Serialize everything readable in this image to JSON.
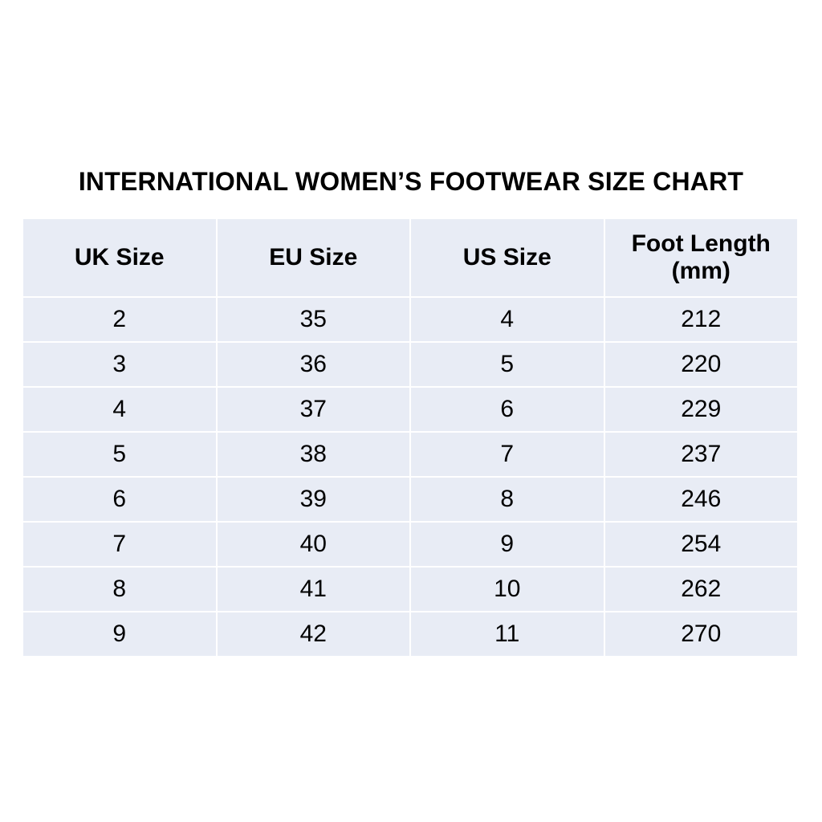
{
  "title": "INTERNATIONAL WOMEN’S FOOTWEAR SIZE CHART",
  "colors": {
    "cell_background": "#e8ecf5",
    "grid_lines": "#ffffff",
    "text": "#000000"
  },
  "table": {
    "headers": [
      "UK Size",
      "EU Size",
      "US Size",
      "Foot Length (mm)"
    ],
    "header_lines": {
      "foot_length_line1": "Foot Length",
      "foot_length_line2": "(mm)"
    },
    "rows": [
      [
        "2",
        "35",
        "4",
        "212"
      ],
      [
        "3",
        "36",
        "5",
        "220"
      ],
      [
        "4",
        "37",
        "6",
        "229"
      ],
      [
        "5",
        "38",
        "7",
        "237"
      ],
      [
        "6",
        "39",
        "8",
        "246"
      ],
      [
        "7",
        "40",
        "9",
        "254"
      ],
      [
        "8",
        "41",
        "10",
        "262"
      ],
      [
        "9",
        "42",
        "11",
        "270"
      ]
    ]
  }
}
